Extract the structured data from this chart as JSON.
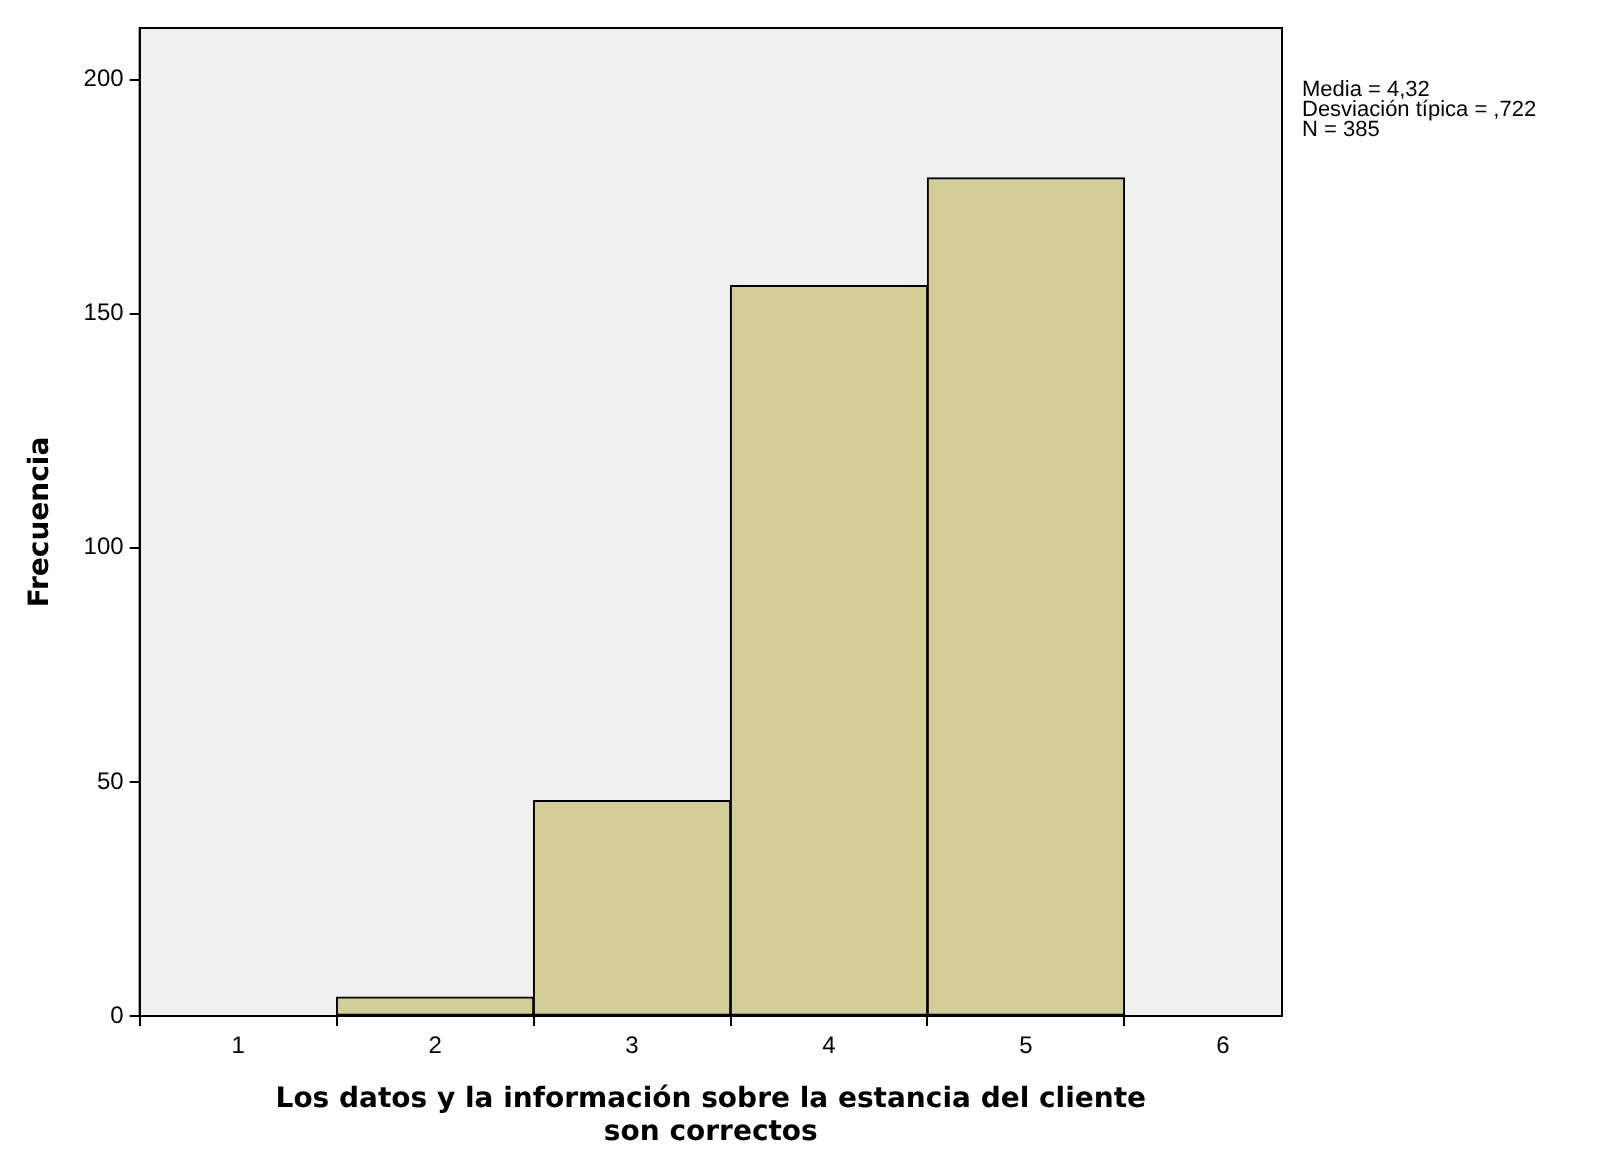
{
  "chart_data": {
    "type": "histogram",
    "xlabel": "Los datos y la información sobre la estancia del cliente son correctos",
    "ylabel": "Frecuencia",
    "bins": [
      1.5,
      2.5,
      3.5,
      4.5,
      5.5
    ],
    "values": [
      4,
      46,
      156,
      179
    ],
    "color": "#d3ce97",
    "xlim": [
      0.5,
      6.3
    ],
    "xticks": [
      1,
      2,
      3,
      4,
      5,
      6
    ],
    "ylim": [
      0,
      211
    ],
    "yticks": [
      0,
      50,
      100,
      150,
      200
    ],
    "grid": false,
    "legend": false,
    "annotations": [
      "Media = 4,32",
      "Desviación típica = ,722",
      "N = 385"
    ]
  }
}
